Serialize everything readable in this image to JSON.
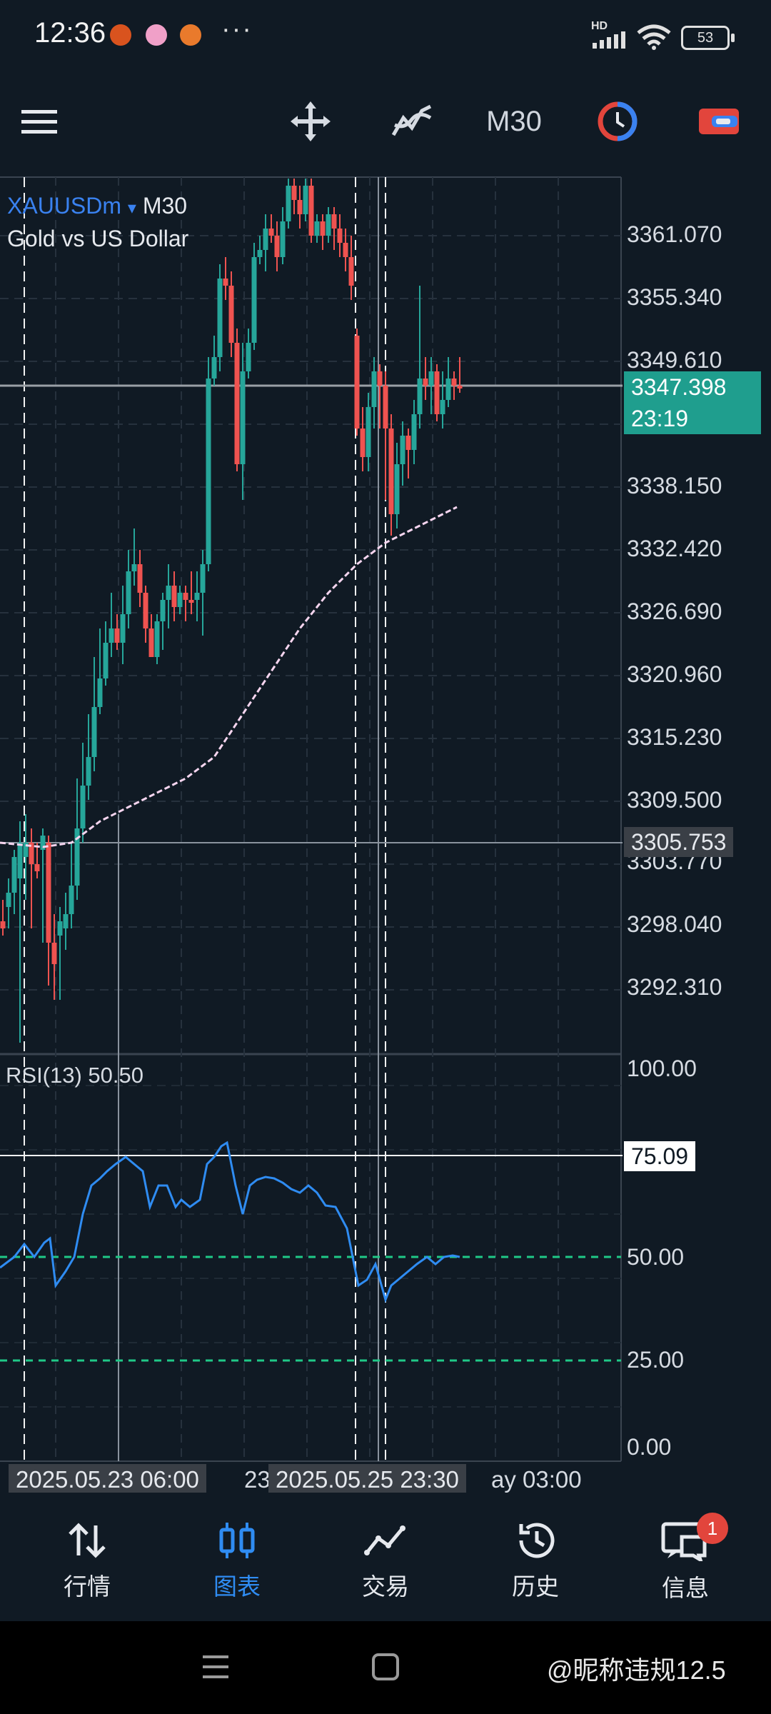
{
  "status_bar": {
    "time": "12:36",
    "more": "···",
    "hd_label": "HD",
    "battery": "53"
  },
  "toolbar": {
    "menu_icon": "hamburger-menu-icon",
    "crosshair_icon": "move-crosshair-icon",
    "indicators_icon": "indicators-icon",
    "timeframe": "M30",
    "clock_icon": "one-click-trading-icon",
    "objects_icon": "objects-icon"
  },
  "chart": {
    "symbol": "XAUUSDm",
    "symbol_dropdown": "▾",
    "timeframe": "M30",
    "description": "Gold vs US Dollar",
    "price_labels": [
      "3361.070",
      "3355.340",
      "3349.610",
      "3338.150",
      "3332.420",
      "3326.690",
      "3320.960",
      "3315.230",
      "3309.500",
      "3303.770",
      "3298.040",
      "3292.310"
    ],
    "current_price": "3347.398",
    "countdown": "23:19",
    "crosshair_price": "3305.753",
    "colors": {
      "bull": "#26a69a",
      "bear": "#ef5350",
      "background": "#101a24",
      "ma": "#f7d6f0",
      "rsi": "#2f8cf2",
      "rsi_levels": "#1fc987"
    }
  },
  "rsi": {
    "label": "RSI(13) 50.50",
    "levels": [
      "100.00",
      "75.09",
      "50.00",
      "25.00",
      "0.00"
    ]
  },
  "time_axis": {
    "tag1": "2025.05.23 06:00",
    "partial1": "23",
    "tag2": "2025.05.25 23:30",
    "partial2": "ay 03:00"
  },
  "bottom_nav": {
    "items": [
      {
        "label": "行情",
        "icon": "quotes-arrows-icon"
      },
      {
        "label": "图表",
        "icon": "chart-candles-icon"
      },
      {
        "label": "交易",
        "icon": "trade-icon"
      },
      {
        "label": "历史",
        "icon": "history-icon"
      },
      {
        "label": "信息",
        "icon": "messages-icon"
      }
    ],
    "badge": "1",
    "active_color": "#2f8cf2"
  },
  "watermark": "@昵称违规12.5"
}
